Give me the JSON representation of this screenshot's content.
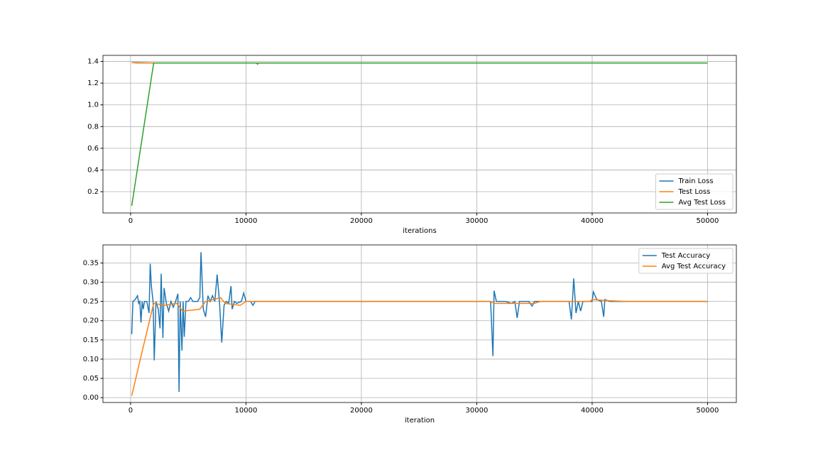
{
  "chart_data": [
    {
      "type": "line",
      "xlabel": "iterations",
      "grid": true,
      "legend": "lower right",
      "xlim": [
        -2395,
        52495
      ],
      "ylim": [
        0.004,
        1.456
      ],
      "xticks": [
        0,
        10000,
        20000,
        30000,
        40000,
        50000
      ],
      "yticks": [
        0.2,
        0.4,
        0.6,
        0.8,
        {
          "value": 1,
          "label": "1.0"
        },
        1.2,
        1.4
      ],
      "series": [
        {
          "name": "Train Loss",
          "color": "#1f77b4",
          "x": [
            100,
            2000,
            11000,
            20000,
            30000,
            40000,
            50000
          ],
          "values": [
            1.39,
            1.386,
            1.386,
            1.386,
            1.386,
            1.386,
            1.386
          ]
        },
        {
          "name": "Test Loss",
          "color": "#ff7f0e",
          "x": [
            100,
            500,
            2000,
            11000,
            20000,
            30000,
            40000,
            50000
          ],
          "values": [
            1.39,
            1.386,
            1.386,
            1.386,
            1.386,
            1.386,
            1.386,
            1.386
          ]
        },
        {
          "name": "Avg Test Loss",
          "color": "#2ca02c",
          "x": [
            100,
            2000,
            10900,
            11000,
            11100,
            20000,
            30000,
            40000,
            50000
          ],
          "values": [
            0.07,
            1.386,
            1.386,
            1.375,
            1.386,
            1.386,
            1.386,
            1.386,
            1.386
          ]
        }
      ]
    },
    {
      "type": "line",
      "xlabel": "iteration",
      "grid": true,
      "legend": "upper right",
      "xlim": [
        -2395,
        52495
      ],
      "ylim": [
        -0.0127,
        0.397
      ],
      "xticks": [
        0,
        10000,
        20000,
        30000,
        40000,
        50000
      ],
      "yticks": [
        {
          "value": 0,
          "label": "0.00"
        },
        {
          "value": 0.05,
          "label": "0.05"
        },
        {
          "value": 0.1,
          "label": "0.10"
        },
        {
          "value": 0.15,
          "label": "0.15"
        },
        {
          "value": 0.2,
          "label": "0.20"
        },
        {
          "value": 0.25,
          "label": "0.25"
        },
        {
          "value": 0.3,
          "label": "0.30"
        },
        {
          "value": 0.35,
          "label": "0.35"
        }
      ],
      "series": [
        {
          "name": "Test Accuracy",
          "color": "#1f77b4",
          "x": [
            100,
            200,
            400,
            600,
            700,
            800,
            900,
            1000,
            1100,
            1200,
            1400,
            1600,
            1700,
            1800,
            1950,
            2050,
            2200,
            2400,
            2550,
            2650,
            2800,
            2900,
            3100,
            3300,
            3500,
            3700,
            3900,
            4100,
            4200,
            4300,
            4450,
            4550,
            4650,
            4800,
            5000,
            5200,
            5400,
            5800,
            6000,
            6100,
            6300,
            6500,
            6700,
            6900,
            7100,
            7300,
            7500,
            7700,
            7900,
            8100,
            8300,
            8500,
            8700,
            8800,
            9000,
            9200,
            9600,
            9800,
            10000,
            10400,
            10600,
            10800,
            12000,
            31200,
            31400,
            31500,
            31700,
            32500,
            33000,
            33300,
            33500,
            33700,
            34500,
            34800,
            35000,
            38000,
            38200,
            38400,
            38600,
            38800,
            39000,
            39200,
            40000,
            40100,
            40400,
            40800,
            41000,
            41100,
            41500,
            50000
          ],
          "values": [
            0.165,
            0.25,
            0.255,
            0.265,
            0.245,
            0.25,
            0.195,
            0.25,
            0.23,
            0.25,
            0.25,
            0.22,
            0.348,
            0.29,
            0.25,
            0.097,
            0.25,
            0.23,
            0.18,
            0.322,
            0.155,
            0.285,
            0.245,
            0.225,
            0.25,
            0.235,
            0.25,
            0.27,
            0.015,
            0.25,
            0.122,
            0.25,
            0.158,
            0.25,
            0.25,
            0.26,
            0.25,
            0.25,
            0.26,
            0.378,
            0.23,
            0.21,
            0.265,
            0.25,
            0.265,
            0.25,
            0.32,
            0.25,
            0.143,
            0.24,
            0.25,
            0.245,
            0.29,
            0.23,
            0.25,
            0.245,
            0.25,
            0.272,
            0.25,
            0.25,
            0.24,
            0.25,
            0.25,
            0.25,
            0.108,
            0.278,
            0.25,
            0.25,
            0.245,
            0.25,
            0.207,
            0.25,
            0.25,
            0.238,
            0.25,
            0.25,
            0.203,
            0.31,
            0.22,
            0.25,
            0.225,
            0.25,
            0.25,
            0.275,
            0.255,
            0.25,
            0.21,
            0.255,
            0.25,
            0.25
          ]
        },
        {
          "name": "Avg Test Accuracy",
          "color": "#ff7f0e",
          "x": [
            100,
            1000,
            1800,
            2000,
            3000,
            4000,
            4500,
            5500,
            6000,
            6500,
            7200,
            7800,
            8200,
            9500,
            10000,
            31200,
            31500,
            35000,
            35500,
            39800,
            40000,
            41500,
            43000,
            50000
          ],
          "values": [
            0.005,
            0.12,
            0.22,
            0.245,
            0.24,
            0.245,
            0.225,
            0.228,
            0.23,
            0.25,
            0.255,
            0.26,
            0.245,
            0.24,
            0.25,
            0.25,
            0.245,
            0.245,
            0.25,
            0.25,
            0.255,
            0.252,
            0.25,
            0.25
          ]
        }
      ]
    }
  ]
}
